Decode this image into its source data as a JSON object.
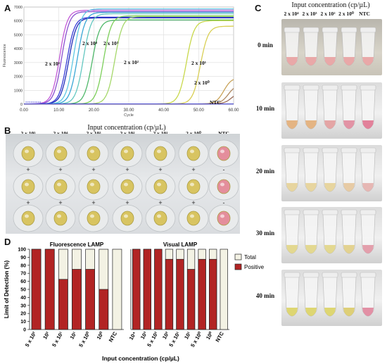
{
  "panels": {
    "A": "A",
    "B": "B",
    "C": "C",
    "D": "D"
  },
  "chart_data": [
    {
      "type": "line",
      "panel": "A",
      "xlabel": "Cycle",
      "ylabel": "Fluorescence",
      "xlim": [
        0,
        60
      ],
      "ylim": [
        0,
        7000
      ],
      "x_ticks": [
        "0.00",
        "10.00",
        "20.00",
        "30.00",
        "40.00",
        "50.00",
        "60.00"
      ],
      "y_ticks": [
        "0",
        "1000",
        "2000",
        "3000",
        "4000",
        "5000",
        "6000",
        "7000"
      ],
      "grid": true,
      "annotations": [
        "2 x 10⁵",
        "2 x 10⁴",
        "2 x 10³",
        "2 x 10²",
        "2 x 10¹",
        "2 x 10⁰",
        "NTC"
      ],
      "series": [
        {
          "color": "#c25bd6",
          "midpoint": 10.2,
          "plateau": 6750
        },
        {
          "color": "#8a4fd0",
          "midpoint": 10.8,
          "plateau": 6650
        },
        {
          "color": "#3b3fd6",
          "midpoint": 12.3,
          "plateau": 6250
        },
        {
          "color": "#1f2bb8",
          "midpoint": 12.8,
          "plateau": 6200
        },
        {
          "color": "#5fc7e3",
          "midpoint": 14.2,
          "plateau": 6850
        },
        {
          "color": "#3aa7d6",
          "midpoint": 15.3,
          "plateau": 6600
        },
        {
          "color": "#63c7c1",
          "midpoint": 17.0,
          "plateau": 6500
        },
        {
          "color": "#4fb86a",
          "midpoint": 19.5,
          "plateau": 6050
        },
        {
          "color": "#7ccf5a",
          "midpoint": 22.8,
          "plateau": 6350
        },
        {
          "color": "#a5d86a",
          "midpoint": 26.0,
          "plateau": 6300
        },
        {
          "color": "#c8d84a",
          "midpoint": 46.5,
          "plateau": 6000
        },
        {
          "color": "#d9cf54",
          "midpoint": 50.5,
          "plateau": 5600
        },
        {
          "color": "#c9a35a",
          "midpoint": 57.2,
          "plateau": 1900
        },
        {
          "color": "#b08a62",
          "midpoint": 58.5,
          "plateau": 1400
        },
        {
          "color": "#9c6f5a",
          "midpoint": 59.5,
          "plateau": 900
        },
        {
          "color": "#4f4fd0",
          "midpoint": null,
          "plateau": 0
        }
      ]
    },
    {
      "type": "bar",
      "panel": "D",
      "title": "Fluorescence LAMP",
      "ylabel": "Limit of Detection (%)",
      "xlabel": "Input concentration (cp/µL)",
      "ylim": [
        0,
        100
      ],
      "y_ticks": [
        0,
        10,
        20,
        30,
        40,
        50,
        60,
        70,
        80,
        90,
        100
      ],
      "categories": [
        "5 x 10²",
        "10²",
        "5 x 10¹",
        "10¹",
        "5 x 10⁰",
        "10⁰",
        "NTC"
      ],
      "series": [
        {
          "name": "Total",
          "color": "#f3f2e4",
          "values": [
            100,
            100,
            100,
            100,
            100,
            100,
            100
          ]
        },
        {
          "name": "Positive",
          "color": "#b22424",
          "values": [
            100,
            100,
            62.5,
            75,
            75,
            50,
            0
          ]
        }
      ]
    },
    {
      "type": "bar",
      "panel": "D",
      "title": "Visual LAMP",
      "categories": [
        "10⁴",
        "10³",
        "5 x 10²",
        "10²",
        "5 x 10¹",
        "10¹",
        "5 x 10⁰",
        "10⁰",
        "NTC"
      ],
      "ylim": [
        0,
        100
      ],
      "series": [
        {
          "name": "Total",
          "color": "#f3f2e4",
          "values": [
            100,
            100,
            100,
            100,
            100,
            100,
            100,
            100,
            100
          ]
        },
        {
          "name": "Positive",
          "color": "#b22424",
          "values": [
            100,
            100,
            100,
            87.5,
            87.5,
            75,
            87.5,
            87.5,
            0
          ]
        }
      ],
      "legend": "right",
      "legend_entries": [
        "Total",
        "Positive"
      ]
    }
  ],
  "panelB": {
    "title": "Input concentration (cp/µL)",
    "columns": [
      "2 x 10⁵",
      "2 x 10⁴",
      "2 x 10³",
      "2 x 10²",
      "2 x 10¹",
      "2 x 10⁰",
      "NTC"
    ],
    "signs": [
      "+",
      "+",
      "+",
      "+",
      "+",
      "+",
      "-"
    ],
    "well_colors": [
      "#d8c25a",
      "#d8c25a",
      "#d8c25a",
      "#d8c25a",
      "#d8c25a",
      "#d8c25a",
      "#e48a98"
    ]
  },
  "panelC": {
    "title": "Input concentration (cp/µL)",
    "columns": [
      "2 x 10⁴",
      "2 x 10³",
      "2 x 10²",
      "2 x 10⁰",
      "NTC"
    ],
    "times": [
      "0 min",
      "10 min",
      "20 min",
      "30 min",
      "40 min"
    ],
    "liquid_colors": [
      [
        "#e8a3a3",
        "#e8a3a3",
        "#e8a3a3",
        "#e8a3a3",
        "#e8a3a3"
      ],
      [
        "#e3b07c",
        "#e3b07c",
        "#e3a0a0",
        "#e08da0",
        "#e07a95"
      ],
      [
        "#e6d39a",
        "#e6d39a",
        "#e6d39a",
        "#e6c8a0",
        "#e5b3b0"
      ],
      [
        "#e2d68a",
        "#e2d68a",
        "#e2d68a",
        "#e2d08a",
        "#e29aa8"
      ],
      [
        "#dcd46a",
        "#dcd46a",
        "#dcd46a",
        "#dccc70",
        "#e08aa0"
      ]
    ]
  }
}
